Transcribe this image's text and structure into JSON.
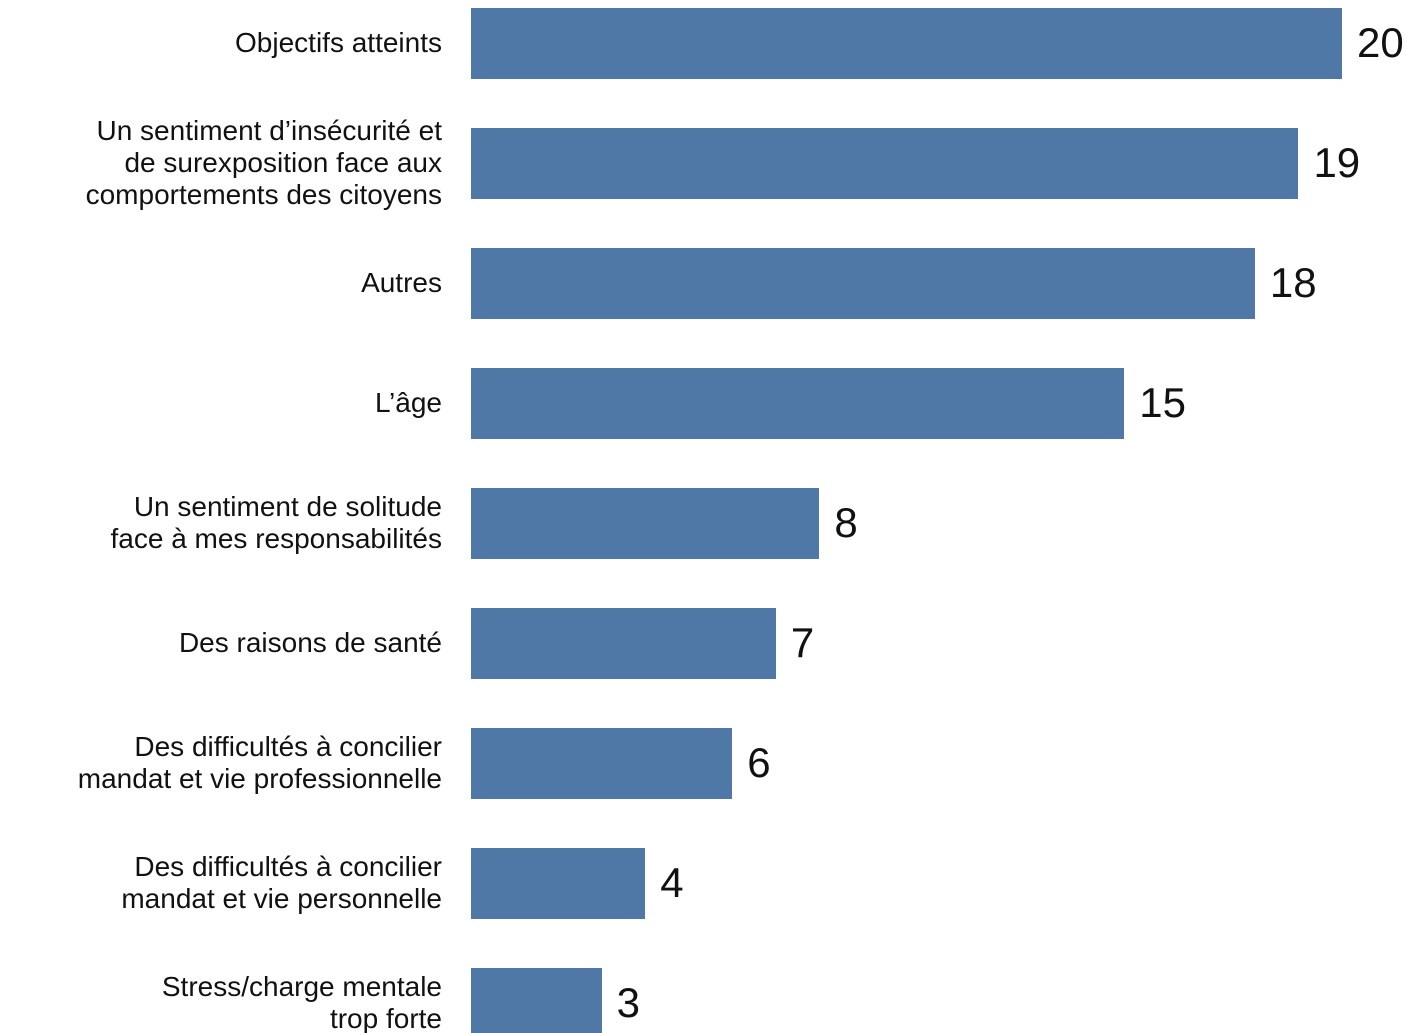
{
  "chart_data": {
    "type": "bar",
    "orientation": "horizontal",
    "color": "#4f78a6",
    "categories": [
      "Objectifs atteints",
      "Un sentiment d’insécurité et\nde surexposition face aux\ncomportements des citoyens",
      "Autres",
      "L’âge",
      "Un sentiment de solitude\nface à mes responsabilités",
      "Des raisons de santé",
      "Des difficultés à concilier\nmandat et vie professionnelle",
      "Des difficultés à concilier\nmandat et vie personnelle",
      "Stress/charge mentale\ntrop forte"
    ],
    "values": [
      20,
      19,
      18,
      15,
      8,
      7,
      6,
      4,
      3
    ]
  }
}
